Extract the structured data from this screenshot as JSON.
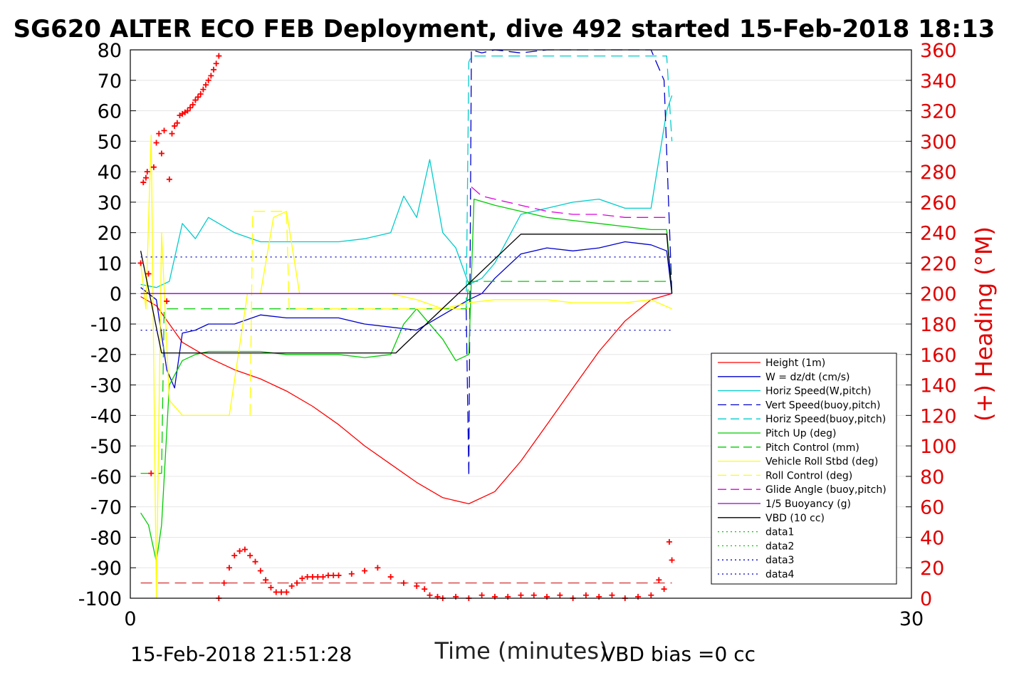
{
  "chart_data": {
    "type": "line",
    "title": "SG620 ALTER ECO FEB Deployment, dive 492 started 15-Feb-2018 18:13",
    "xlabel": "Time (minutes)",
    "ylabel_right": "(+) Heading (°M)",
    "xlim": [
      0,
      30
    ],
    "ylim_left": [
      -100,
      80
    ],
    "ylim_right": [
      0,
      360
    ],
    "x_ticks": [
      "0",
      "30"
    ],
    "y_ticks_left": [
      "80",
      "70",
      "60",
      "50",
      "40",
      "30",
      "20",
      "10",
      "0",
      "-10",
      "-20",
      "-30",
      "-40",
      "-50",
      "-60",
      "-70",
      "-80",
      "-90",
      "-100"
    ],
    "y_ticks_right": [
      "360",
      "340",
      "320",
      "300",
      "280",
      "260",
      "240",
      "220",
      "200",
      "180",
      "160",
      "140",
      "120",
      "100",
      "80",
      "60",
      "40",
      "20",
      "0"
    ],
    "grid": true,
    "legend_position": "lower-right",
    "footer_left": "15-Feb-2018 21:51:28",
    "footer_right": "VBD bias =0 cc",
    "series": [
      {
        "name": "Height (1m)",
        "color": "#ff0000",
        "style": "solid",
        "x": [
          0.4,
          1,
          2,
          3,
          4,
          5,
          6,
          7,
          8,
          9,
          10,
          11,
          12,
          13,
          14,
          15,
          16,
          17,
          18,
          19,
          20,
          20.8
        ],
        "y": [
          -1,
          -4,
          -16,
          -21,
          -25,
          -28,
          -32,
          -37,
          -43,
          -50,
          -56,
          -62,
          -67,
          -69,
          -65,
          -55,
          -43,
          -31,
          -19,
          -9,
          -2,
          0
        ]
      },
      {
        "name": "W = dz/dt (cm/s)",
        "color": "#0000cc",
        "style": "solid",
        "x": [
          0.4,
          1,
          1.4,
          1.7,
          2,
          2.5,
          3,
          4,
          5,
          6,
          7,
          8,
          9,
          10,
          11,
          12,
          13,
          13.5,
          14,
          15,
          16,
          17,
          18,
          19,
          20,
          20.6,
          20.8
        ],
        "y": [
          2,
          -2,
          -25,
          -31,
          -13,
          -12,
          -10,
          -10,
          -7,
          -8,
          -8,
          -8,
          -10,
          -11,
          -12,
          -7,
          -2,
          0,
          5,
          13,
          15,
          14,
          15,
          17,
          16,
          14,
          0
        ]
      },
      {
        "name": "Horiz Speed(W,pitch)",
        "color": "#00cccc",
        "style": "solid",
        "x": [
          0.4,
          1,
          1.5,
          2,
          2.5,
          3,
          4,
          5,
          6,
          7,
          8,
          9,
          10,
          10.5,
          11,
          11.5,
          12,
          12.5,
          13,
          13.5,
          14,
          15,
          16,
          17,
          18,
          19,
          20,
          20.6,
          20.8
        ],
        "y": [
          3,
          2,
          4,
          23,
          18,
          25,
          20,
          17,
          17,
          17,
          17,
          18,
          20,
          32,
          25,
          44,
          20,
          15,
          3,
          5,
          10,
          26,
          28,
          30,
          31,
          28,
          28,
          60,
          65
        ]
      },
      {
        "name": "Vert Speed(buoy,pitch)",
        "color": "#0000cc",
        "style": "dashed",
        "x": [
          12.9,
          13,
          13.1,
          13.5,
          14,
          15,
          16,
          17,
          18,
          19,
          20,
          20.5,
          20.8
        ],
        "y": [
          -5,
          -60,
          80,
          79,
          80,
          79,
          80,
          80,
          80,
          80,
          80,
          70,
          0
        ]
      },
      {
        "name": "Horiz Speed(buoy,pitch)",
        "color": "#00cccc",
        "style": "dashed",
        "x": [
          12.9,
          13,
          13.1,
          20.6,
          20.8
        ],
        "y": [
          -5,
          76,
          78,
          78,
          50
        ]
      },
      {
        "name": "Pitch Up (deg)",
        "color": "#00cc00",
        "style": "solid",
        "x": [
          0.4,
          0.7,
          1,
          1.2,
          1.5,
          2,
          2.5,
          3,
          4,
          5,
          6,
          7,
          8,
          9,
          10,
          10.5,
          11,
          12,
          12.5,
          13,
          13.2,
          14,
          15,
          16,
          17,
          18,
          19,
          20,
          20.6,
          20.8
        ],
        "y": [
          -72,
          -76,
          -88,
          -76,
          -30,
          -22,
          -20,
          -19,
          -19,
          -19,
          -20,
          -20,
          -20,
          -21,
          -20,
          -10,
          -5,
          -15,
          -22,
          -20,
          31,
          29,
          27,
          25,
          24,
          23,
          22,
          21,
          21,
          0
        ]
      },
      {
        "name": "Pitch Control (mm)",
        "color": "#00cc00",
        "style": "dashed",
        "x": [
          0.4,
          1.2,
          1.3,
          2,
          12.9,
          13,
          20.8
        ],
        "y": [
          -59,
          -59,
          -5,
          -5,
          -5,
          4,
          4
        ]
      },
      {
        "name": "Vehicle Roll Stbd (deg)",
        "color": "#ffff00",
        "style": "solid",
        "x": [
          0.4,
          0.6,
          0.8,
          1,
          1.2,
          1.5,
          2,
          3,
          3.8,
          4.5,
          5,
          5.5,
          6,
          6.5,
          7,
          8,
          9,
          10,
          11,
          12,
          13,
          14,
          15,
          16,
          17,
          18,
          19,
          20,
          20.8
        ],
        "y": [
          10,
          -5,
          52,
          -100,
          20,
          -35,
          -40,
          -40,
          -40,
          0,
          0,
          25,
          27,
          0,
          0,
          0,
          0,
          0,
          -2,
          -5,
          -3,
          -2,
          -2,
          -2,
          -3,
          -3,
          -3,
          -2,
          -5
        ]
      },
      {
        "name": "Roll Control (deg)",
        "color": "#ffff00",
        "style": "dashed",
        "x": [
          4.6,
          4.7,
          6,
          6.1,
          12.9,
          13
        ],
        "y": [
          -40,
          27,
          27,
          -5,
          -5,
          -5
        ]
      },
      {
        "name": "Glide Angle (buoy,pitch)",
        "color": "#dd00dd",
        "style": "dashed",
        "x": [
          13.1,
          13.5,
          14,
          15,
          16,
          17,
          18,
          19,
          20,
          20.6
        ],
        "y": [
          35,
          32,
          31,
          29,
          27,
          26,
          26,
          25,
          25,
          25
        ]
      },
      {
        "name": "1/5 Buoyancy (g)",
        "color": "#9900cc",
        "style": "solid",
        "x": [
          0.4,
          13,
          20.8
        ],
        "y": [
          0,
          0,
          0
        ]
      },
      {
        "name": "VBD (10 cc)",
        "color": "#000000",
        "style": "solid",
        "x": [
          0.4,
          1.2,
          10.2,
          10.5,
          15,
          20.6,
          20.8
        ],
        "y": [
          14,
          -19.5,
          -19.5,
          -17,
          19.5,
          19.5,
          0
        ]
      },
      {
        "name": "data1",
        "color": "#00cc00",
        "style": "dotted",
        "x": [],
        "y": []
      },
      {
        "name": "data2",
        "color": "#00cc00",
        "style": "dotted",
        "x": [],
        "y": []
      },
      {
        "name": "data3",
        "color": "#0000cc",
        "style": "dotted",
        "x": [
          0.4,
          20.8
        ],
        "y": [
          12,
          12
        ]
      },
      {
        "name": "data4",
        "color": "#0000cc",
        "style": "dotted",
        "x": [
          0.4,
          20.8
        ],
        "y": [
          -12,
          -12
        ]
      }
    ],
    "heading_series": {
      "name": "Heading",
      "color": "#ff0000",
      "marker": "+",
      "x": [
        0.4,
        0.5,
        0.6,
        0.65,
        0.7,
        0.8,
        0.9,
        1.0,
        1.1,
        1.2,
        1.3,
        1.4,
        1.5,
        1.6,
        1.7,
        1.8,
        1.9,
        2.0,
        2.1,
        2.2,
        2.3,
        2.4,
        2.5,
        2.6,
        2.7,
        2.8,
        2.9,
        3.0,
        3.1,
        3.2,
        3.3,
        3.4,
        3.4,
        3.6,
        3.8,
        4.0,
        4.2,
        4.4,
        4.6,
        4.8,
        5.0,
        5.2,
        5.4,
        5.6,
        5.8,
        6.0,
        6.2,
        6.4,
        6.6,
        6.8,
        7.0,
        7.2,
        7.4,
        7.6,
        7.8,
        8.0,
        8.5,
        9.0,
        9.5,
        10.0,
        10.5,
        11.0,
        11.3,
        11.5,
        11.8,
        12.0,
        12.5,
        13.0,
        13.5,
        14.0,
        14.5,
        15.0,
        15.5,
        16.0,
        16.5,
        17.0,
        17.5,
        18.0,
        18.5,
        19.0,
        19.5,
        20.0,
        20.3,
        20.5,
        20.7,
        20.8
      ],
      "y": [
        220,
        273,
        276,
        280,
        213,
        82,
        283,
        299,
        305,
        292,
        307,
        195,
        275,
        305,
        310,
        312,
        317,
        318,
        319,
        320,
        322,
        324,
        327,
        329,
        331,
        334,
        337,
        340,
        343,
        347,
        351,
        356,
        0,
        10,
        20,
        28,
        31,
        32,
        28,
        24,
        18,
        12,
        7,
        4,
        4,
        4,
        8,
        10,
        13,
        14,
        14,
        14,
        14,
        15,
        15,
        15,
        16,
        18,
        20,
        14,
        10,
        8,
        6,
        2,
        1,
        0,
        1,
        0,
        2,
        1,
        1,
        2,
        2,
        1,
        2,
        0,
        2,
        1,
        2,
        0,
        1,
        2,
        12,
        6,
        37,
        25
      ]
    }
  }
}
